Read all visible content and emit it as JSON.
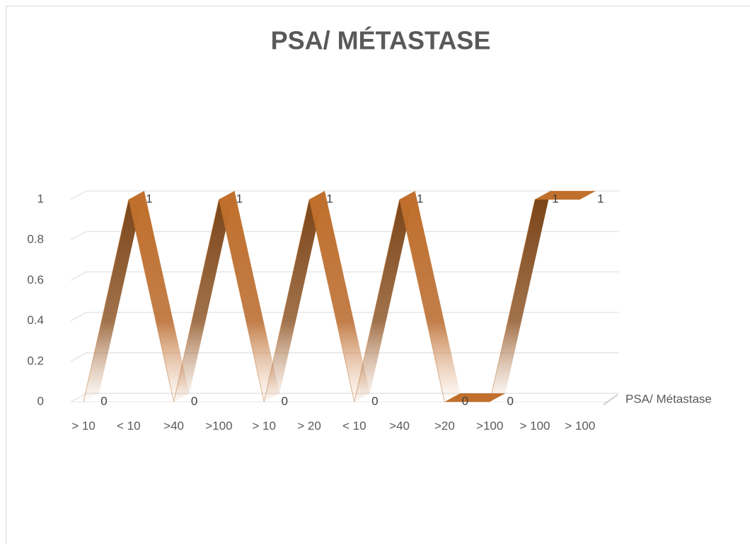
{
  "chart_data": {
    "type": "line3d",
    "title": "PSA/ MÉTASTASE",
    "categories": [
      "> 10",
      "< 10",
      ">40",
      ">100",
      "> 10",
      "> 20",
      "< 10",
      ">40",
      ">20",
      ">100",
      "> 100",
      "> 100"
    ],
    "series": [
      {
        "name": "PSA/ Métastase",
        "color": "#c0702c",
        "values": [
          0,
          1,
          0,
          1,
          0,
          1,
          0,
          1,
          0,
          0,
          1,
          1
        ]
      }
    ],
    "ylim": [
      0,
      1
    ],
    "yticks": [
      0,
      0.2,
      0.4,
      0.6,
      0.8,
      1
    ],
    "grid": true,
    "legend": "right"
  }
}
